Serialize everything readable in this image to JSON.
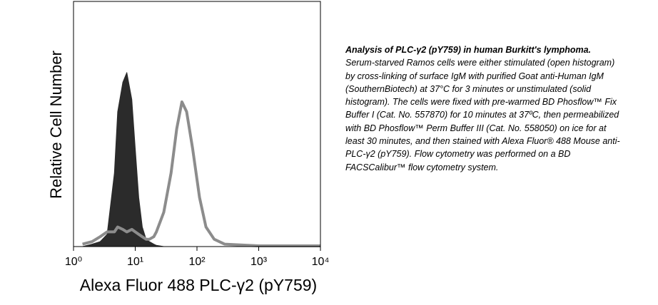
{
  "chart_data": {
    "type": "area",
    "x_label": "Alexa Fluor 488 PLC-γ2 (pY759)",
    "y_label": "Relative Cell Number",
    "caption_title": "Analysis of PLC-γ2 (pY759) in human Burkitt's lymphoma.",
    "caption": "Serum-starved Ramos cells were either stimulated (open histogram) by cross-linking of surface IgM with purified Goat anti-Human IgM (SouthernBiotech) at 37°C for 3 minutes or unstimulated (solid histogram).  The cells were fixed with pre-warmed BD Phosflow™ Fix Buffer I (Cat. No. 557870) for 10 minutes at 37ºC, then permeabilized with BD Phosflow™ Perm Buffer III (Cat. No. 558050) on ice for at least 30 minutes, and then stained with Alexa Fluor® 488 Mouse anti-PLC-γ2 (pY759).  Flow cytometry was performed on a BD FACSCalibur™ flow cytometry system.",
    "x_scale": "log",
    "xlim": [
      1,
      10000
    ],
    "xticks": [
      {
        "value": 1,
        "label": "10⁰"
      },
      {
        "value": 10,
        "label": "10¹"
      },
      {
        "value": 100,
        "label": "10²"
      },
      {
        "value": 1000,
        "label": "10³"
      },
      {
        "value": 10000,
        "label": "10⁴"
      }
    ],
    "ylim": [
      0,
      100
    ],
    "x": [
      1.4,
      2,
      2.7,
      3.5,
      4.6,
      5.2,
      6.3,
      7.3,
      8.8,
      10,
      11.4,
      13,
      15,
      17,
      20,
      22,
      29,
      38,
      47,
      57,
      68,
      85,
      110,
      140,
      190,
      280,
      1000,
      10000
    ],
    "series": [
      {
        "color": "#2b2b2b",
        "filled": true,
        "values": [
          0,
          1,
          2,
          5,
          30,
          55,
          67,
          71,
          60,
          40,
          20,
          8,
          3,
          2,
          1,
          0.5,
          0,
          0,
          0,
          0,
          0,
          0,
          0,
          0,
          0,
          0,
          0,
          0
        ]
      },
      {
        "color": "#8c8c8c",
        "filled": false,
        "values": [
          1,
          2,
          4,
          6,
          6,
          8,
          7,
          6,
          7,
          6,
          5,
          4,
          3,
          3,
          4,
          6,
          14,
          30,
          48,
          59,
          55,
          40,
          20,
          8,
          3,
          1,
          0.3,
          0.3
        ]
      }
    ]
  }
}
